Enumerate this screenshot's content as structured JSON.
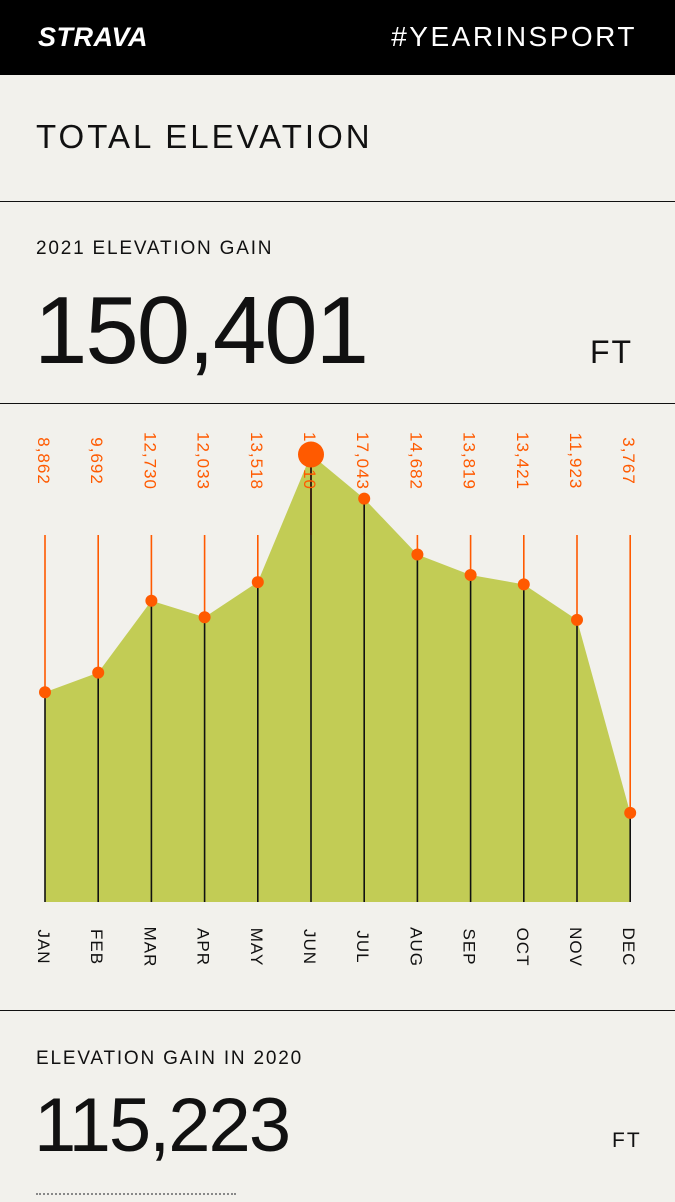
{
  "header": {
    "logo": "STRAVA",
    "hashtag": "#YEARINSPORT"
  },
  "section_title": "TOTAL ELEVATION",
  "current": {
    "label": "2021 ELEVATION GAIN",
    "value": "150,401",
    "unit": "FT"
  },
  "previous": {
    "label": "ELEVATION GAIN IN 2020",
    "value": "115,223",
    "unit": "FT"
  },
  "colors": {
    "accent": "#ff5a00",
    "area": "#c2cc55",
    "background": "#f2f1ec"
  },
  "chart_data": {
    "type": "area",
    "categories": [
      "JAN",
      "FEB",
      "MAR",
      "APR",
      "MAY",
      "JUN",
      "JUL",
      "AUG",
      "SEP",
      "OCT",
      "NOV",
      "DEC"
    ],
    "values": [
      8862,
      9692,
      12730,
      12033,
      13518,
      18910,
      17043,
      14682,
      13819,
      13421,
      11923,
      3767
    ],
    "value_labels": [
      "8,862",
      "9,692",
      "12,730",
      "12,033",
      "13,518",
      "18,910",
      "17,043",
      "14,682",
      "13,819",
      "13,421",
      "11,923",
      "3,767"
    ],
    "highlight": "JUN",
    "ylim": [
      0,
      21000
    ],
    "title": "",
    "xlabel": "",
    "ylabel": "",
    "grid": false
  }
}
